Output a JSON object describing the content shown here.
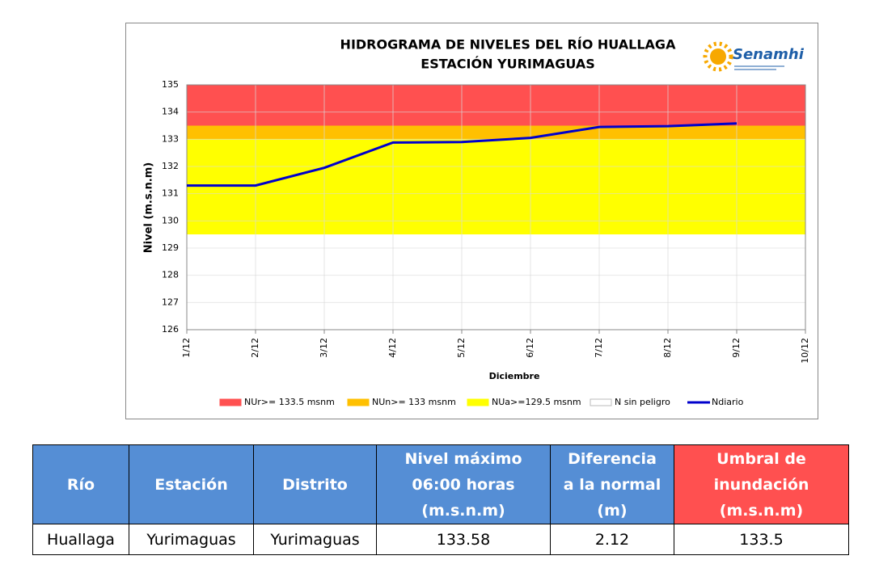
{
  "logo": {
    "text": "Senamhi"
  },
  "chart_data": {
    "type": "line",
    "title": [
      "HIDROGRAMA DE NIVELES DEL RÍO HUALLAGA",
      "ESTACIÓN YURIMAGUAS"
    ],
    "y_label": "Nivel (m.s.n.m)",
    "x_label": "Diciembre",
    "categories": [
      "1/12",
      "2/12",
      "3/12",
      "4/12",
      "5/12",
      "6/12",
      "7/12",
      "8/12",
      "9/12",
      "10/12"
    ],
    "ylim": [
      126,
      135
    ],
    "yticks": [
      126,
      127,
      128,
      129,
      130,
      131,
      132,
      133,
      134,
      135
    ],
    "grid": true,
    "bands": [
      {
        "name": "NUr>= 133.5 msnm",
        "color": "#ff5050",
        "from": 133.5,
        "to": 135
      },
      {
        "name": "NUn>= 133 msnm",
        "color": "#ffc000",
        "from": 133,
        "to": 133.5
      },
      {
        "name": "NUa>=129.5 msnm",
        "color": "#ffff00",
        "from": 129.5,
        "to": 133
      },
      {
        "name": "N sin peligro",
        "color": "#ffffff",
        "from": 126,
        "to": 129.5
      }
    ],
    "series": [
      {
        "name": "Ndiario",
        "color": "#0000cc",
        "values": [
          131.3,
          131.3,
          131.95,
          132.88,
          132.9,
          133.05,
          133.45,
          133.48,
          133.58,
          null
        ]
      }
    ]
  },
  "table": {
    "header": [
      [
        "Río"
      ],
      [
        "Estación"
      ],
      [
        "Distrito"
      ],
      [
        "Nivel máximo",
        "06:00 horas",
        "(m.s.n.m)"
      ],
      [
        "Diferencia",
        "a la normal",
        "(m)"
      ],
      [
        "Umbral de",
        "inundación",
        "(m.s.n.m)"
      ]
    ],
    "rows": [
      [
        "Huallaga",
        "Yurimaguas",
        "Yurimaguas",
        "133.58",
        "2.12",
        "133.5"
      ]
    ]
  }
}
